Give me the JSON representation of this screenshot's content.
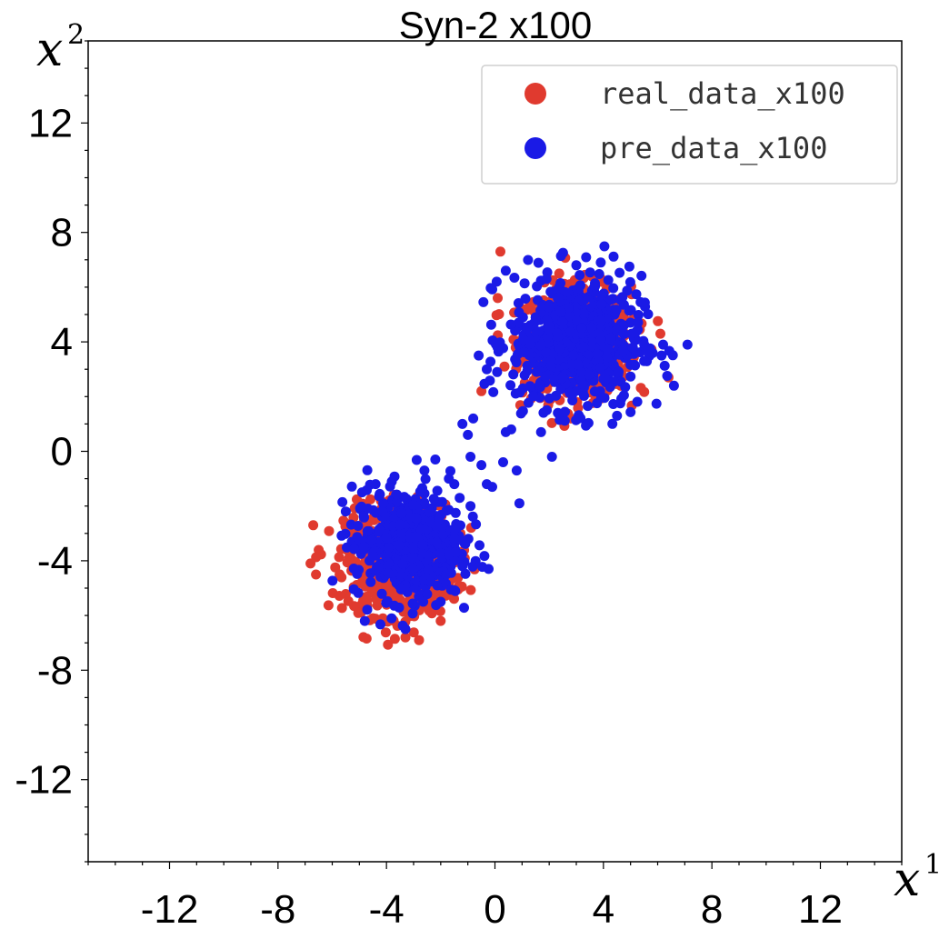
{
  "chart_data": {
    "type": "scatter",
    "title": "Syn-2 x100",
    "xlabel": "x",
    "xlabel_sup": "1",
    "ylabel": "x",
    "ylabel_sup": "2",
    "xlim": [
      -15,
      15
    ],
    "ylim": [
      -15,
      15
    ],
    "xticks": [
      -12,
      -8,
      -4,
      0,
      4,
      8,
      12
    ],
    "yticks": [
      12,
      8,
      4,
      0,
      -4,
      -8,
      -12
    ],
    "grid": false,
    "legend_position": "top-right",
    "series": [
      {
        "name": "real_data_x100",
        "color": "#e03a2f",
        "clusters": [
          {
            "center": [
              3,
              4
            ],
            "std": 1.0,
            "count": 600
          },
          {
            "center": [
              -3.5,
              -4
            ],
            "std": 1.0,
            "count": 600
          }
        ],
        "extra_points": [
          [
            0.2,
            7.3
          ],
          [
            0.1,
            5.6
          ],
          [
            -0.5,
            2.2
          ],
          [
            6.4,
            2.7
          ],
          [
            6.1,
            4.3
          ],
          [
            2.8,
            1.2
          ],
          [
            -6.7,
            -2.7
          ],
          [
            -6.8,
            -4.1
          ],
          [
            -6.6,
            -4.5
          ],
          [
            -3.3,
            -6.8
          ],
          [
            -2.8,
            -6.9
          ],
          [
            -4.5,
            -6.1
          ],
          [
            -2.0,
            -6.2
          ]
        ]
      },
      {
        "name": "pre_data_x100",
        "color": "#1a1ae6",
        "clusters": [
          {
            "center": [
              3,
              4
            ],
            "std": 1.2,
            "count": 650
          },
          {
            "center": [
              -3.2,
              -3.4
            ],
            "std": 1.0,
            "count": 500
          }
        ],
        "extra_points": [
          [
            -0.8,
            1.2
          ],
          [
            -1.2,
            1.0
          ],
          [
            -1.0,
            0.6
          ],
          [
            0.6,
            0.8
          ],
          [
            0.4,
            0.7
          ],
          [
            -0.5,
            -0.5
          ],
          [
            0.8,
            -0.7
          ],
          [
            0.9,
            -1.9
          ],
          [
            -0.9,
            -0.2
          ],
          [
            -1.5,
            -1.2
          ],
          [
            -1.3,
            -1.7
          ],
          [
            -0.3,
            -1.2
          ],
          [
            -0.1,
            -1.3
          ],
          [
            -0.9,
            -2.0
          ],
          [
            -1.7,
            -1.0
          ],
          [
            -2.2,
            -0.3
          ],
          [
            -2.6,
            -0.7
          ],
          [
            0.3,
            -0.4
          ],
          [
            1.7,
            0.7
          ],
          [
            2.1,
            -0.2
          ],
          [
            7.1,
            3.9
          ],
          [
            6.6,
            2.4
          ],
          [
            6.2,
            3.9
          ],
          [
            5.5,
            3.3
          ],
          [
            4.5,
            1.3
          ],
          [
            3.9,
            6.9
          ],
          [
            3.0,
            6.8
          ],
          [
            1.9,
            6.3
          ],
          [
            0.4,
            6.6
          ],
          [
            -0.6,
            3.5
          ],
          [
            -0.3,
            3.0
          ],
          [
            -3.3,
            -6.5
          ],
          [
            -4.8,
            -6.2
          ],
          [
            -4.4,
            -1.2
          ],
          [
            -4.9,
            -1.5
          ],
          [
            -5.5,
            -2.2
          ],
          [
            -1.2,
            -4.2
          ],
          [
            -1.5,
            -3.2
          ],
          [
            -1.8,
            -4.5
          ],
          [
            -2.0,
            -5.5
          ]
        ]
      }
    ]
  }
}
